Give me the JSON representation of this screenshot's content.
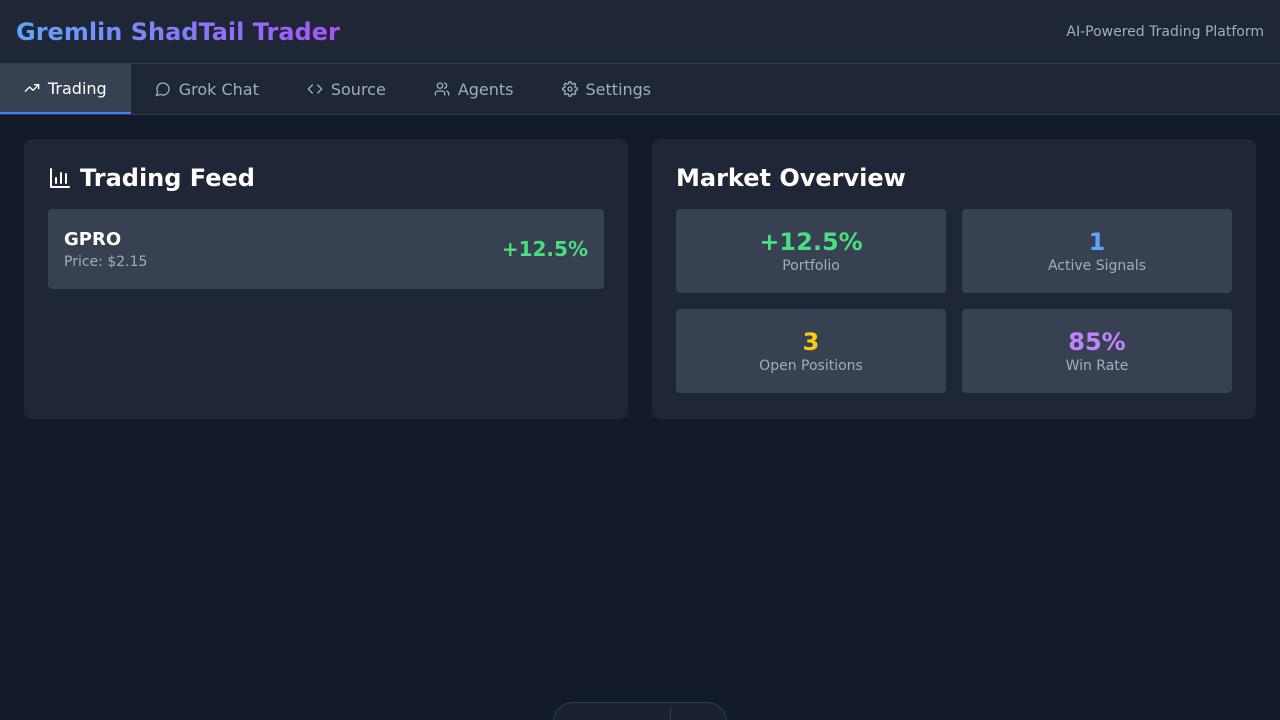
{
  "header": {
    "title": "Gremlin ShadTail Trader",
    "tagline": "AI-Powered Trading Platform",
    "title_gradient": [
      "#60a5fa",
      "#a855f7"
    ]
  },
  "tabs": [
    {
      "label": "Trading",
      "icon": "trending-up-icon",
      "active": true
    },
    {
      "label": "Grok Chat",
      "icon": "chat-bubble-icon",
      "active": false
    },
    {
      "label": "Source",
      "icon": "code-icon",
      "active": false
    },
    {
      "label": "Agents",
      "icon": "users-icon",
      "active": false
    },
    {
      "label": "Settings",
      "icon": "gear-icon",
      "active": false
    }
  ],
  "feed": {
    "title": "Trading Feed",
    "icon": "bar-chart-icon",
    "items": [
      {
        "symbol": "GPRO",
        "price": "Price: $2.15",
        "change": "+12.5%",
        "change_color": "#4ade80"
      }
    ]
  },
  "overview": {
    "title": "Market Overview",
    "stats": [
      {
        "value": "+12.5%",
        "label": "Portfolio",
        "color": "#4ade80"
      },
      {
        "value": "1",
        "label": "Active Signals",
        "color": "#60a5fa"
      },
      {
        "value": "3",
        "label": "Open Positions",
        "color": "#facc15"
      },
      {
        "value": "85%",
        "label": "Win Rate",
        "color": "#c084fc"
      }
    ]
  },
  "dock": {
    "icons": [
      "pointer-icon",
      "hand-icon",
      "menu-icon",
      "gear-icon"
    ]
  },
  "colors": {
    "background": "#131a2a",
    "panel": "#1f2737",
    "tile": "#374152",
    "accent": "#3b82f6"
  }
}
